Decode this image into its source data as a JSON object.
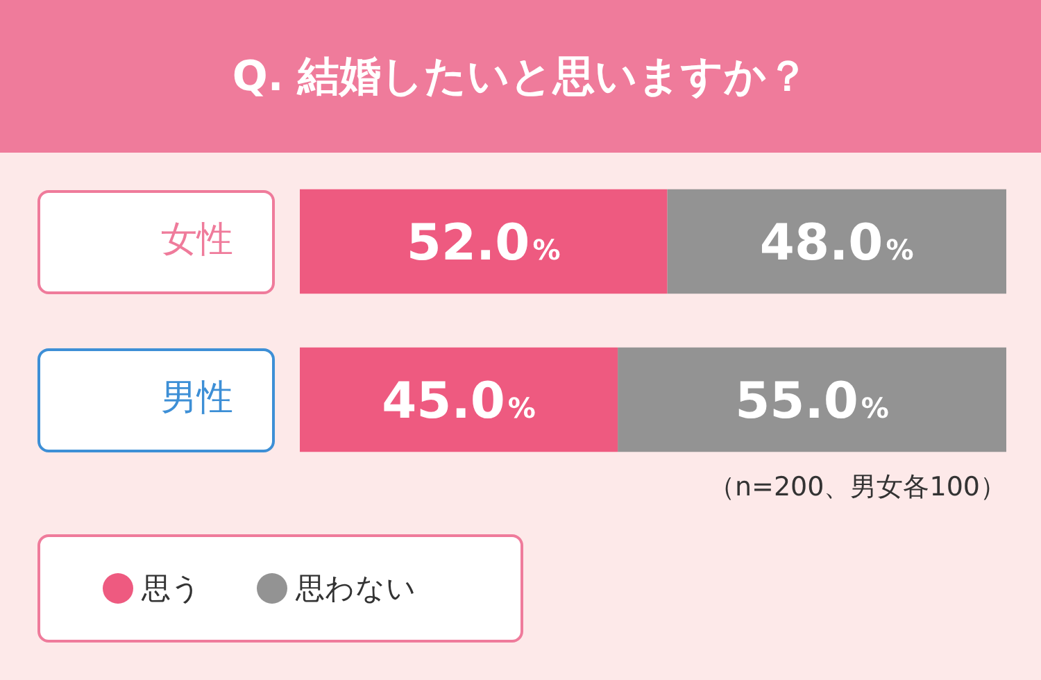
{
  "chart_data": {
    "type": "bar",
    "orientation": "horizontal",
    "stacked": true,
    "title": "Q. 結婚したいと思いますか？",
    "categories": [
      "女性",
      "男性"
    ],
    "series": [
      {
        "name": "思う",
        "color": "#ee5a80",
        "values": [
          52.0,
          45.0
        ],
        "value_labels": [
          "52.0%",
          "45.0%"
        ]
      },
      {
        "name": "思わない",
        "color": "#939393",
        "values": [
          48.0,
          55.0
        ],
        "value_labels": [
          "48.0%",
          "55.0%"
        ]
      }
    ],
    "tick_labels": "y",
    "legend": "bottom left",
    "annotations": [
      "（n=200、男女各100）"
    ]
  }
}
